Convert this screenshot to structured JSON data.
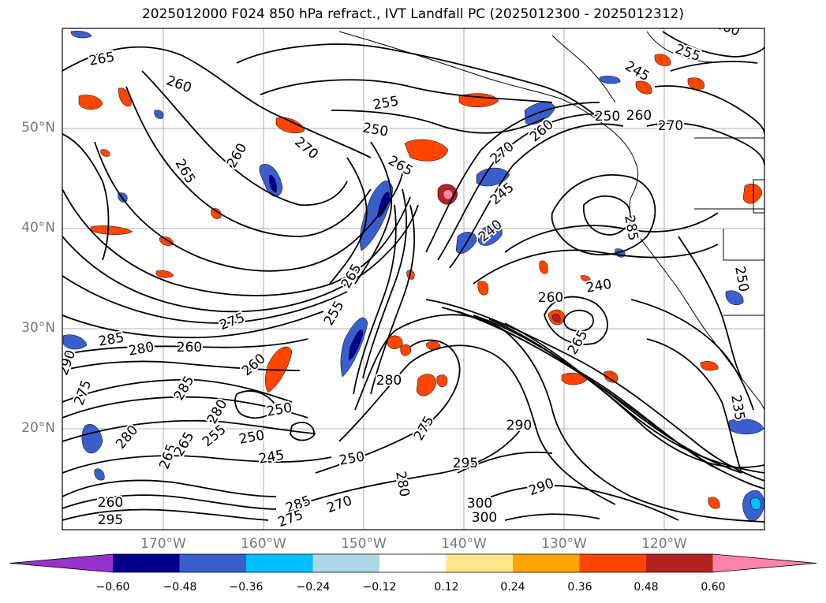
{
  "title": "2025012000 F024 850 hPa refract., IVT Landfall PC (2025012300 - 2025012312)",
  "lat_labels": [
    "50°N",
    "40°N",
    "30°N",
    "20°N"
  ],
  "lon_labels": [
    "170°W",
    "160°W",
    "150°W",
    "140°W",
    "130°W",
    "120°W"
  ],
  "colorbar": {
    "ticks": [
      "−0.60",
      "−0.48",
      "−0.36",
      "−0.24",
      "−0.12",
      "0.12",
      "0.24",
      "0.36",
      "0.48",
      "0.60"
    ],
    "colors": [
      "#9932cc",
      "#00008b",
      "#3a5fcd",
      "#00bfff",
      "#add8e6",
      "#ffffff",
      "#ffe68c",
      "#ffa500",
      "#ff4500",
      "#b22222",
      "#ff82ab"
    ]
  },
  "contour_labels": [
    "265",
    "260",
    "255",
    "250",
    "260",
    "265",
    "270",
    "270",
    "265",
    "260",
    "245",
    "240",
    "240",
    "260",
    "265",
    "275",
    "285",
    "280",
    "260",
    "290",
    "275",
    "285",
    "280",
    "250",
    "260",
    "255",
    "250",
    "245",
    "250",
    "275",
    "280",
    "280",
    "295",
    "290",
    "300",
    "300",
    "290",
    "270",
    "285",
    "275",
    "295",
    "260",
    "265",
    "255",
    "265",
    "245",
    "250",
    "235",
    "260",
    "255",
    "285",
    "250",
    "260",
    "280",
    "265",
    "270"
  ],
  "map_features": [
    "contour-lines",
    "pc-shading",
    "coastlines",
    "gridlines"
  ]
}
